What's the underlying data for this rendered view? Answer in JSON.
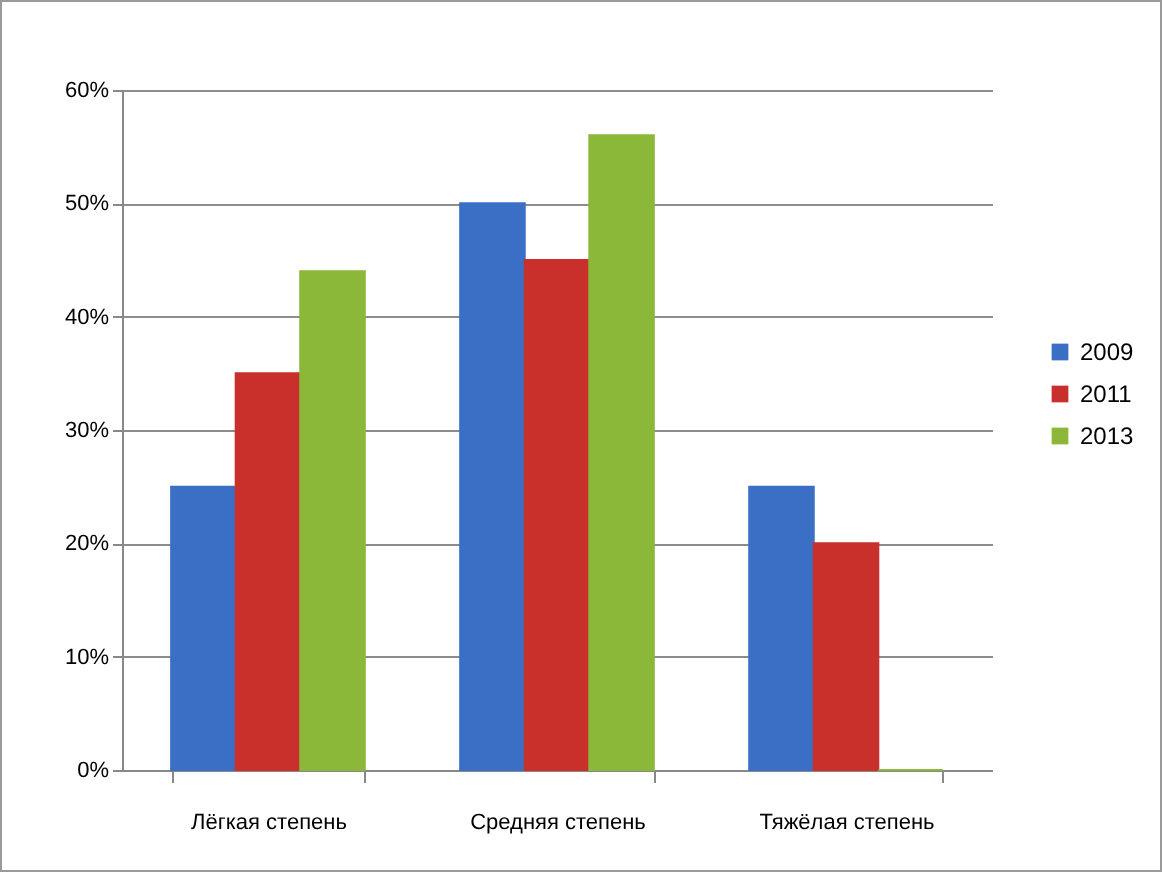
{
  "chart_data": {
    "type": "bar",
    "categories": [
      "Лёгкая степень",
      "Средняя степень",
      "Тяжёлая степень"
    ],
    "series": [
      {
        "name": "2009",
        "color": "#3b6fc6",
        "values": [
          25,
          50,
          25
        ]
      },
      {
        "name": "2011",
        "color": "#c9302c",
        "values": [
          35,
          45,
          20
        ]
      },
      {
        "name": "2013",
        "color": "#8cb83a",
        "values": [
          44,
          56,
          0
        ]
      }
    ],
    "ylim": [
      0,
      60
    ],
    "yticks": [
      {
        "value": 0,
        "label": "0%"
      },
      {
        "value": 10,
        "label": "10%"
      },
      {
        "value": 20,
        "label": "20%"
      },
      {
        "value": 30,
        "label": "30%"
      },
      {
        "value": 40,
        "label": "40%"
      },
      {
        "value": 50,
        "label": "50%"
      },
      {
        "value": 60,
        "label": "60%"
      }
    ],
    "grid": "y",
    "legend": "right"
  }
}
